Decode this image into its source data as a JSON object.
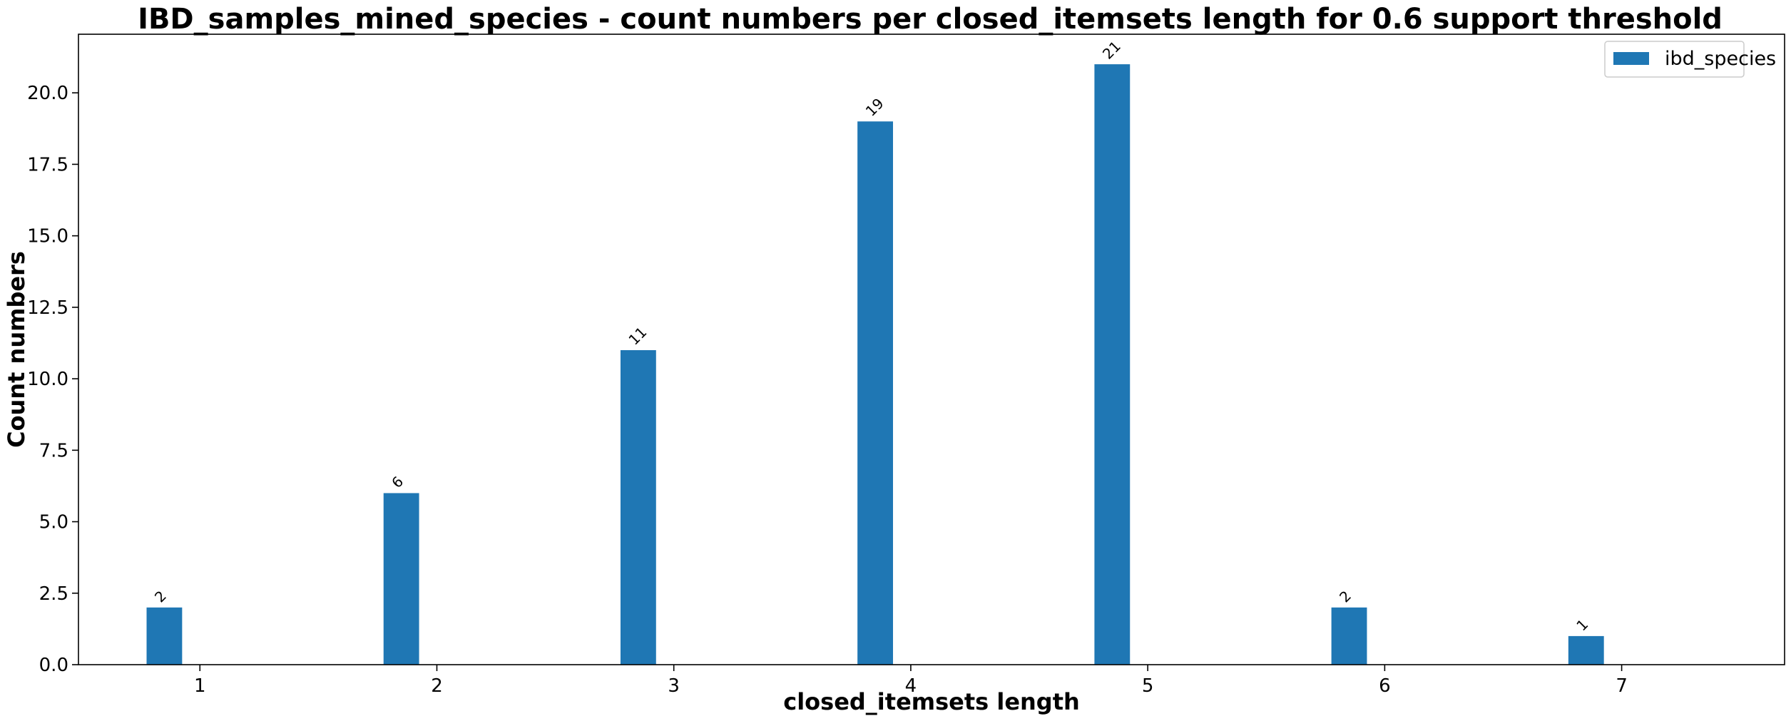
{
  "chart_data": {
    "type": "bar",
    "title": "IBD_samples_mined_species - count numbers per closed_itemsets length for 0.6 support threshold",
    "xlabel": "closed_itemsets length",
    "ylabel": "Count numbers",
    "categories": [
      "1",
      "2",
      "3",
      "4",
      "5",
      "6",
      "7"
    ],
    "series": [
      {
        "name": "ibd_species",
        "values": [
          2,
          6,
          11,
          19,
          21,
          2,
          1
        ],
        "color": "#1f77b4"
      }
    ],
    "bar_labels": [
      "2",
      "6",
      "11",
      "19",
      "21",
      "2",
      "1"
    ],
    "y_ticks": [
      "0.0",
      "2.5",
      "5.0",
      "7.5",
      "10.0",
      "12.5",
      "15.0",
      "17.5",
      "20.0"
    ],
    "ylim": [
      0,
      22.05
    ],
    "xlim": [
      0.4875,
      7.6875
    ],
    "bar_offset": -0.15,
    "bar_width": 0.15,
    "grid": false,
    "legend_position": "upper right"
  }
}
